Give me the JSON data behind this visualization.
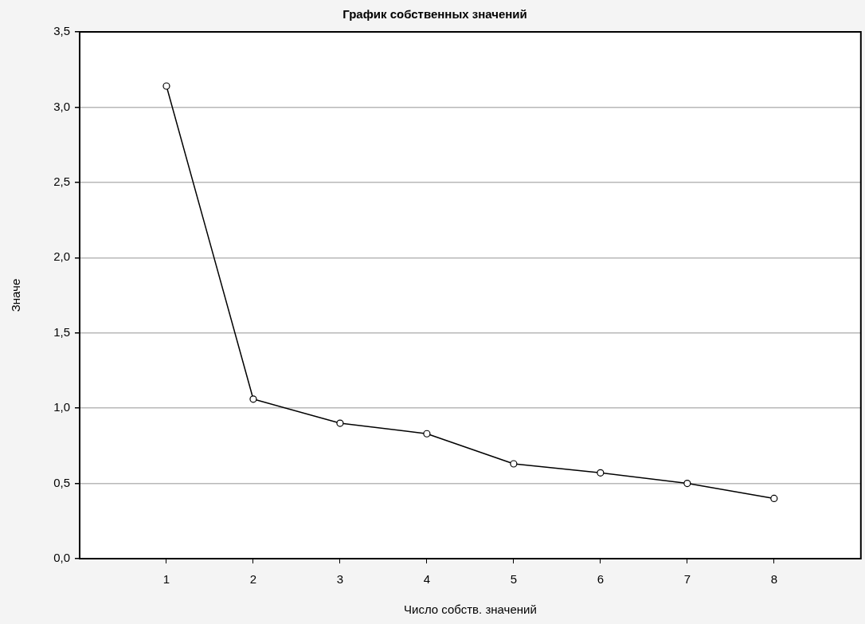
{
  "chart_data": {
    "type": "line",
    "title": "График собственных значений",
    "xlabel": "Число собств. значений",
    "ylabel": "Значе",
    "x": [
      1,
      2,
      3,
      4,
      5,
      6,
      7,
      8
    ],
    "series": [
      {
        "color": "#000000",
        "values": [
          3.14,
          1.06,
          0.9,
          0.83,
          0.63,
          0.57,
          0.5,
          0.4
        ]
      }
    ],
    "xlim": [
      0,
      9
    ],
    "xticks": [
      1,
      2,
      3,
      4,
      5,
      6,
      7,
      8
    ],
    "ylim": [
      0,
      3.5
    ],
    "yticks": [
      {
        "value": 0,
        "label": "0,0"
      },
      {
        "value": 0.5,
        "label": "0,5"
      },
      {
        "value": 1,
        "label": "1,0"
      },
      {
        "value": 1.5,
        "label": "1,5"
      },
      {
        "value": 2,
        "label": "2,0"
      },
      {
        "value": 2.5,
        "label": "2,5"
      },
      {
        "value": 3,
        "label": "3,0"
      },
      {
        "value": 3.5,
        "label": "3,5"
      }
    ],
    "grid": "y",
    "marker": "circle",
    "line_style": "solid",
    "legend": false
  }
}
